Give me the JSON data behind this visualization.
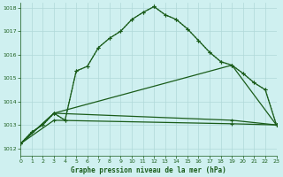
{
  "title": "Graphe pression niveau de la mer (hPa)",
  "bg_color": "#cff0f0",
  "grid_color": "#b0d8d8",
  "line_color": "#1a5c1a",
  "xmin": 0,
  "xmax": 23,
  "ymin": 1012,
  "ymax": 1018,
  "yticks": [
    1012,
    1013,
    1014,
    1015,
    1016,
    1017,
    1018
  ],
  "xticks": [
    0,
    1,
    2,
    3,
    4,
    5,
    6,
    7,
    8,
    9,
    10,
    11,
    12,
    13,
    14,
    15,
    16,
    17,
    18,
    19,
    20,
    21,
    22,
    23
  ],
  "curve1_x": [
    0,
    1,
    2,
    3,
    4,
    5,
    6,
    7,
    8,
    9,
    10,
    11,
    12,
    13,
    14,
    15,
    16,
    17,
    18,
    19,
    20,
    21,
    22,
    23
  ],
  "curve1_y": [
    1012.2,
    1012.7,
    1013.0,
    1013.5,
    1013.2,
    1015.3,
    1015.5,
    1016.3,
    1016.7,
    1017.0,
    1017.5,
    1017.8,
    1018.05,
    1017.7,
    1017.5,
    1017.1,
    1016.6,
    1016.1,
    1015.7,
    1015.55,
    1015.2,
    1014.8,
    1014.5,
    1013.0
  ],
  "line2_x": [
    0,
    3,
    19,
    23
  ],
  "line2_y": [
    1012.2,
    1013.5,
    1015.55,
    1013.0
  ],
  "line3_x": [
    0,
    3,
    19,
    23
  ],
  "line3_y": [
    1012.2,
    1013.5,
    1013.2,
    1013.0
  ],
  "line4_x": [
    0,
    3,
    19,
    23
  ],
  "line4_y": [
    1012.2,
    1013.2,
    1013.05,
    1013.0
  ]
}
